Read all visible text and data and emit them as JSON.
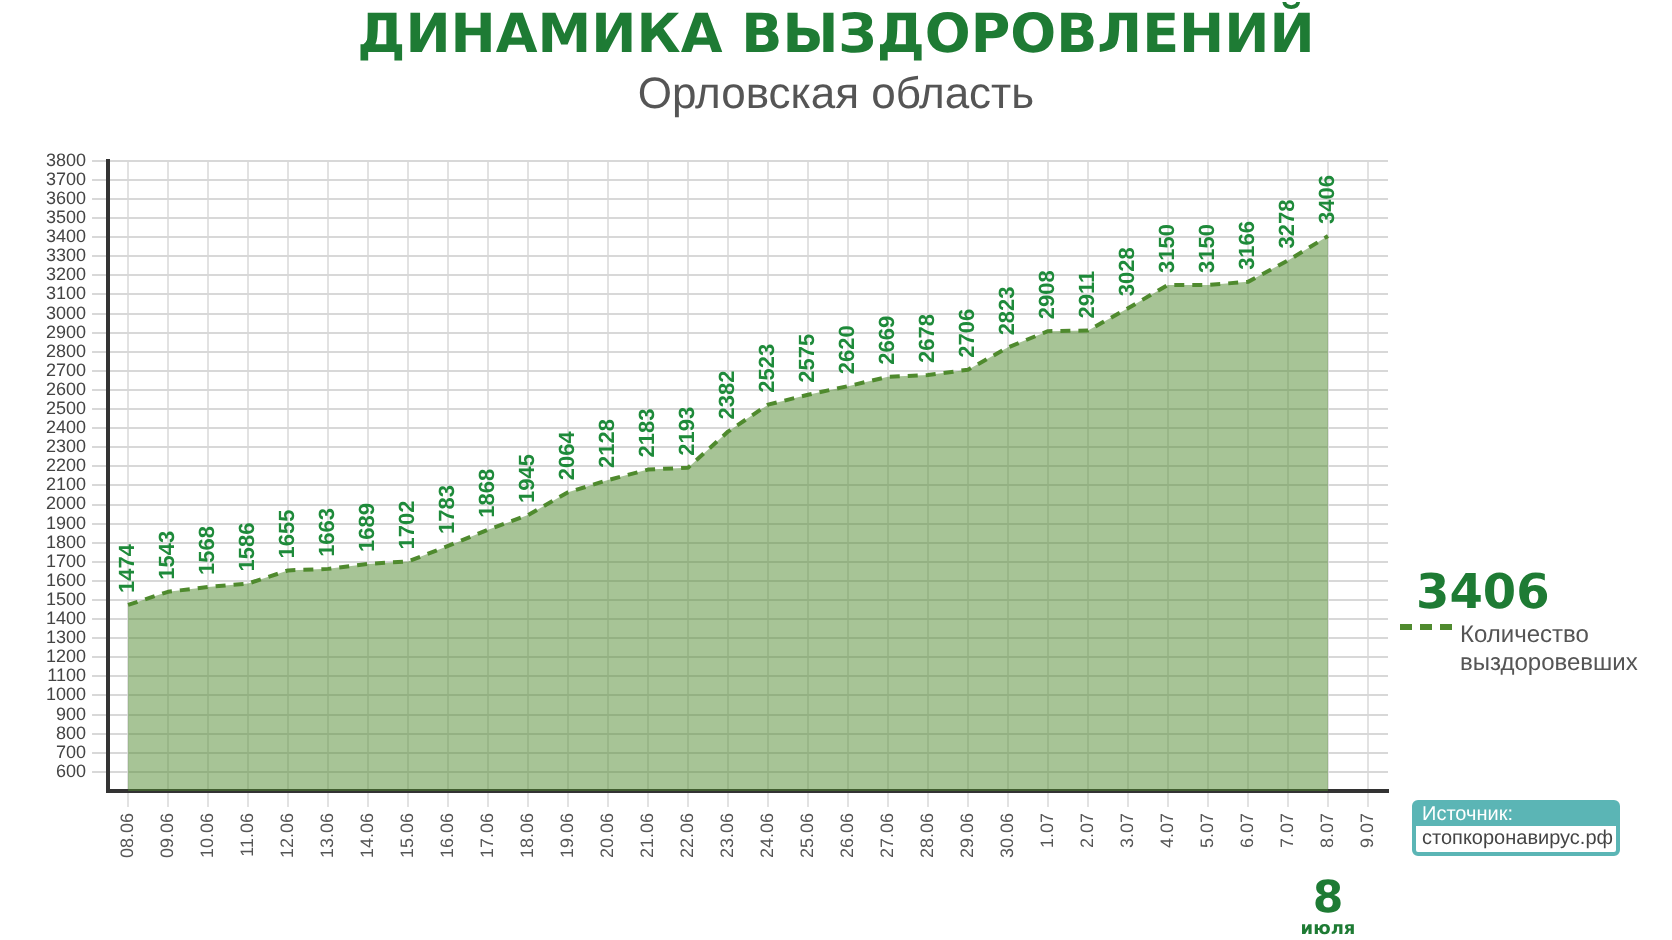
{
  "chart_data": {
    "type": "area",
    "title": "ДИНАМИКА ВЫЗДОРОВЛЕНИЙ",
    "subtitle": "Орловская область",
    "categories": [
      "08.06",
      "09.06",
      "10.06",
      "11.06",
      "12.06",
      "13.06",
      "14.06",
      "15.06",
      "16.06",
      "17.06",
      "18.06",
      "19.06",
      "20.06",
      "21.06",
      "22.06",
      "23.06",
      "24.06",
      "25.06",
      "26.06",
      "27.06",
      "28.06",
      "29.06",
      "30.06",
      "1.07",
      "2.07",
      "3.07",
      "4.07",
      "5.07",
      "6.07",
      "7.07",
      "8.07",
      "9.07"
    ],
    "series": [
      {
        "name": "Количество выздоровевших",
        "color": "#4f8a2e",
        "values": [
          1474,
          1543,
          1568,
          1586,
          1655,
          1663,
          1689,
          1702,
          1783,
          1868,
          1945,
          2064,
          2128,
          2183,
          2193,
          2382,
          2523,
          2575,
          2620,
          2669,
          2678,
          2706,
          2823,
          2908,
          2911,
          3028,
          3150,
          3150,
          3166,
          3278,
          3406,
          null
        ]
      }
    ],
    "ylim": [
      500,
      3800
    ],
    "yticks": [
      600,
      700,
      800,
      900,
      1000,
      1100,
      1200,
      1300,
      1400,
      1500,
      1600,
      1700,
      1800,
      1900,
      2000,
      2100,
      2200,
      2300,
      2400,
      2500,
      2600,
      2700,
      2800,
      2900,
      3000,
      3100,
      3200,
      3300,
      3400,
      3500,
      3600,
      3700,
      3800
    ],
    "grid": true,
    "legend": "right",
    "line_style": "dashed",
    "marker": "none",
    "data_labels": true,
    "annotations": [
      "3406",
      "8 июля",
      "Источник:",
      "стопкоронавирус.рф"
    ]
  }
}
